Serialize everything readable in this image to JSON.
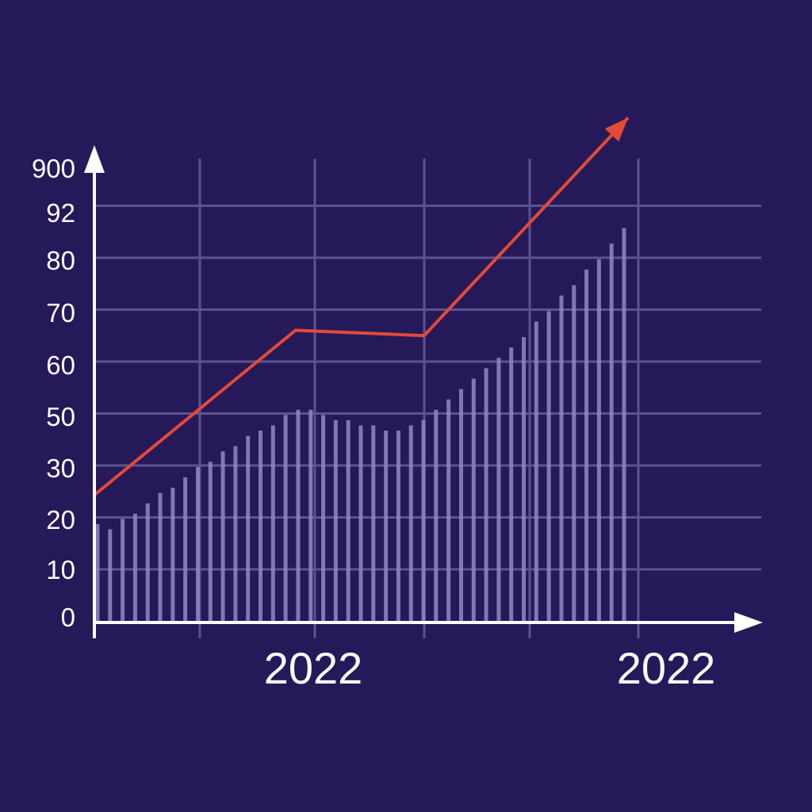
{
  "chart_data": {
    "type": "bar",
    "title": "",
    "xlabel": "",
    "ylabel": "",
    "y_tick_labels": [
      "0",
      "10",
      "20",
      "30",
      "50",
      "60",
      "70",
      "80",
      "92",
      "900"
    ],
    "x_tick_labels": [
      "2022",
      "2022"
    ],
    "grid": true,
    "bar_values": [
      22,
      21,
      23,
      24,
      26,
      28,
      29,
      31,
      33,
      34,
      36,
      37,
      39,
      40,
      41,
      43,
      44,
      44,
      43,
      42,
      42,
      41,
      41,
      40,
      40,
      41,
      42,
      44,
      46,
      48,
      50,
      52,
      54,
      56,
      58,
      61,
      63,
      66,
      68,
      71,
      73,
      76,
      79
    ],
    "trend_line": [
      {
        "x": 0,
        "y": 24
      },
      {
        "x": 0.377,
        "y": 55
      },
      {
        "x": 0.618,
        "y": 54
      },
      {
        "x": 1.0,
        "y": 95
      }
    ],
    "colors": {
      "background": "#25195a",
      "bar": "#8f8ac4",
      "grid": "#5a5493",
      "axis": "#ffffff",
      "trend": "#e34a36",
      "text": "#ffffff"
    }
  }
}
